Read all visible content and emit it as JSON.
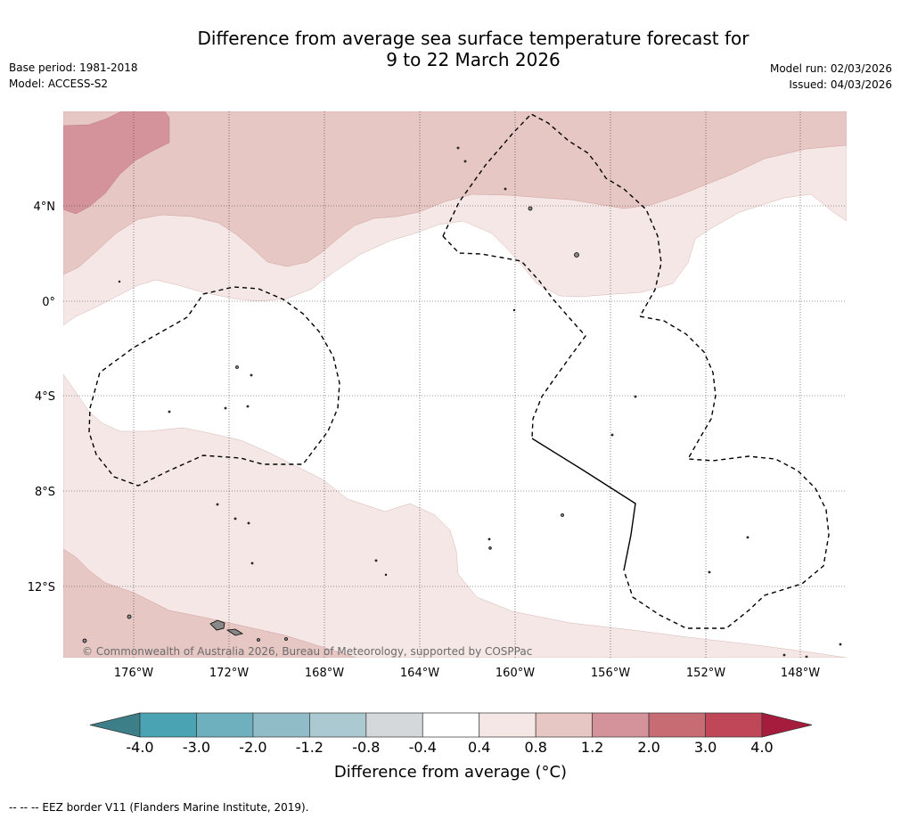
{
  "title_line1": "Difference from average sea surface temperature forecast for",
  "title_line2": "9 to 22 March 2026",
  "base_period": "Base period: 1981-2018",
  "model": "Model: ACCESS-S2",
  "model_run": "Model run: 02/03/2026",
  "issued": "Issued: 04/03/2026",
  "copyright": "© Commonwealth of Australia 2026, Bureau of Meteorology, supported by COSPPac",
  "lat_ticks": [
    "4°N",
    "0°",
    "4°S",
    "8°S",
    "12°S"
  ],
  "lon_ticks": [
    "176°W",
    "172°W",
    "168°W",
    "164°W",
    "160°W",
    "156°W",
    "152°W",
    "148°W"
  ],
  "colorbar": {
    "tick_labels": [
      "-4.0",
      "-3.0",
      "-2.0",
      "-1.2",
      "-0.8",
      "-0.4",
      "0.4",
      "0.8",
      "1.2",
      "2.0",
      "3.0",
      "4.0"
    ],
    "colors": [
      "#3c7f88",
      "#4aa3b3",
      "#6fb0bf",
      "#90bcc8",
      "#aac9d0",
      "#d4d8da",
      "#ffffff",
      "#f4e7e6",
      "#e6c7c3",
      "#d4939a",
      "#c86c74",
      "#bf4757",
      "#a51c3c"
    ],
    "label": "Difference from average (°C)"
  },
  "footer": "-- -- -- EEZ border V11 (Flanders Marine Institute, 2019)."
}
